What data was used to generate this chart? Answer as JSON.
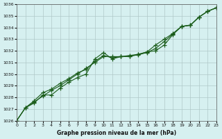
{
  "title": "Graphe pression niveau de la mer (hPa)",
  "background_color": "#d6f0f0",
  "grid_color": "#b0c8c8",
  "line_color": "#1a5c1a",
  "xlim": [
    0,
    23
  ],
  "ylim": [
    1026,
    1036
  ],
  "xticks": [
    0,
    1,
    2,
    3,
    4,
    5,
    6,
    7,
    8,
    9,
    10,
    11,
    12,
    13,
    14,
    15,
    16,
    17,
    18,
    19,
    20,
    21,
    22,
    23
  ],
  "yticks": [
    1026,
    1027,
    1028,
    1029,
    1030,
    1031,
    1032,
    1033,
    1034,
    1035,
    1036
  ],
  "series1_x": [
    0,
    1,
    2,
    3,
    4,
    5,
    6,
    7,
    8,
    9,
    10,
    11,
    12,
    13,
    14,
    15,
    16,
    17,
    18,
    19,
    20,
    21,
    22,
    23
  ],
  "series1_y": [
    1026.0,
    1027.1,
    1027.5,
    1028.2,
    1028.2,
    1028.8,
    1029.3,
    1029.7,
    1030.0,
    1031.3,
    1031.85,
    1031.3,
    1031.5,
    1031.5,
    1031.7,
    1031.9,
    1032.5,
    1033.0,
    1033.5,
    1034.1,
    1034.2,
    1034.9,
    1035.4,
    1035.7
  ],
  "series2_x": [
    0,
    1,
    2,
    3,
    4,
    5,
    6,
    7,
    8,
    9,
    10,
    11,
    12,
    13,
    14,
    15,
    16,
    17,
    18,
    19,
    20,
    21,
    22,
    23
  ],
  "series2_y": [
    1026.0,
    1027.1,
    1027.6,
    1028.1,
    1028.6,
    1029.0,
    1029.5,
    1030.0,
    1030.5,
    1031.0,
    1031.5,
    1031.5,
    1031.5,
    1031.6,
    1031.7,
    1031.9,
    1032.0,
    1032.5,
    1033.4,
    1034.1,
    1034.2,
    1034.9,
    1035.4,
    1035.7
  ],
  "series3_x": [
    0,
    1,
    2,
    3,
    4,
    5,
    6,
    7,
    8,
    9,
    10,
    11,
    12,
    13,
    14,
    15,
    16,
    17,
    18,
    19,
    20,
    21,
    22,
    23
  ],
  "series3_y": [
    1026.0,
    1027.1,
    1027.7,
    1028.4,
    1028.7,
    1029.2,
    1029.6,
    1030.1,
    1030.4,
    1031.1,
    1031.6,
    1031.4,
    1031.5,
    1031.55,
    1031.65,
    1031.85,
    1032.2,
    1032.8,
    1033.45,
    1034.1,
    1034.2,
    1034.9,
    1035.4,
    1035.7
  ]
}
